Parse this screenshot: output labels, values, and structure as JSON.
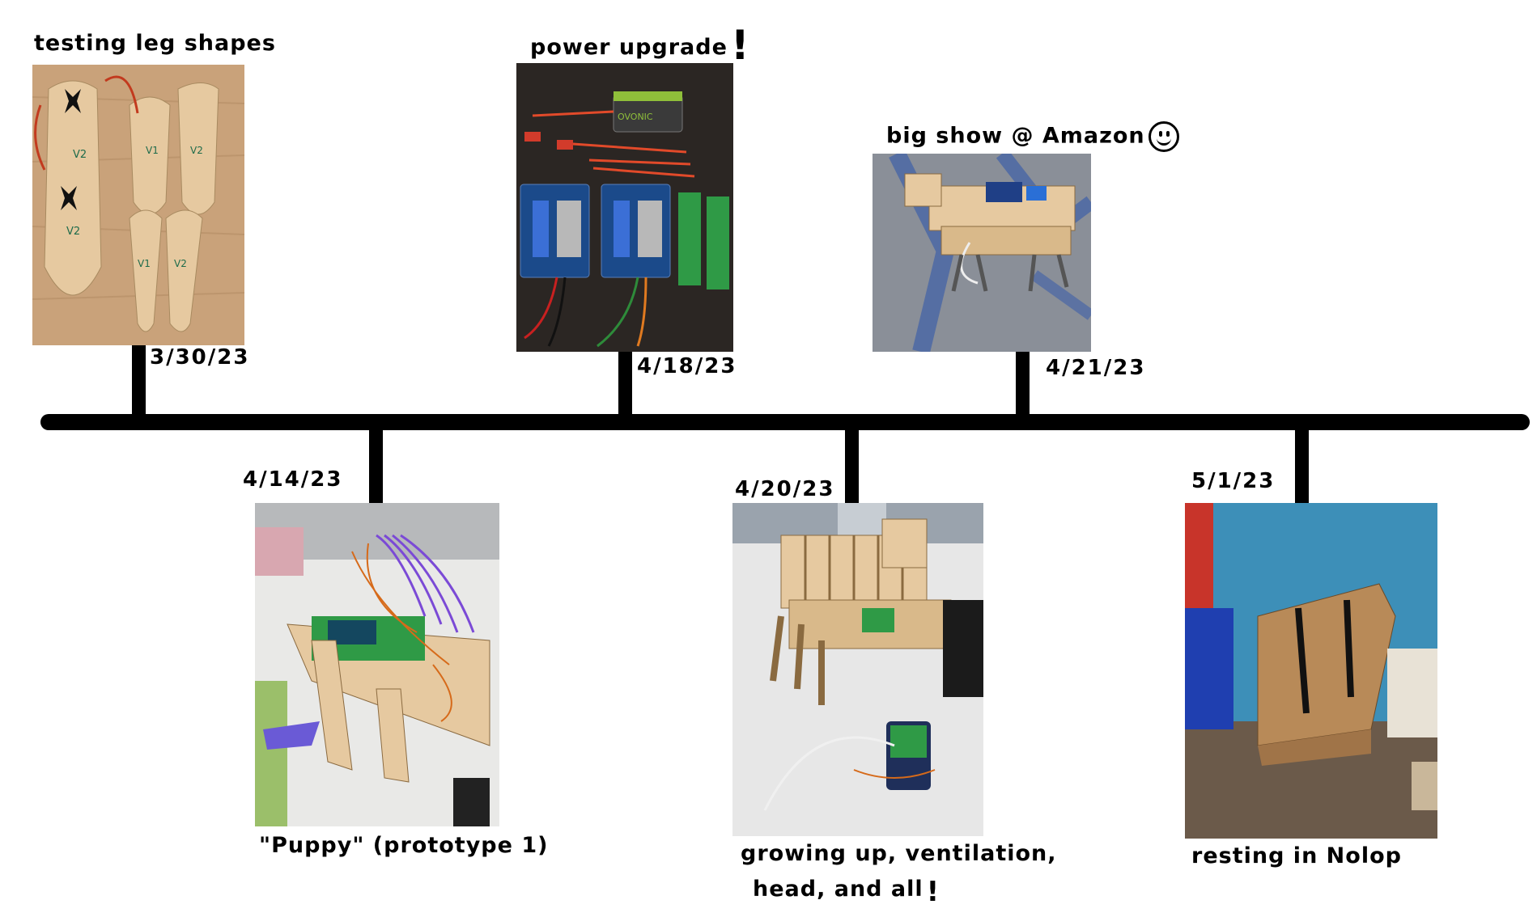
{
  "events": [
    {
      "date": "3/30/23",
      "caption": "testing leg shapes",
      "photo": "laser-cut wooden leg pieces labeled V1 and V2 with servos on a wood table"
    },
    {
      "date": "4/14/23",
      "caption": "\"Puppy\" (prototype 1)",
      "photo": "wooden frame with green board, servos and purple ribbon cables on a white table"
    },
    {
      "date": "4/18/23",
      "caption": "power upgrade",
      "photo": "battery, red connector cables, blue voltage converters and green terminal blocks on a dark table"
    },
    {
      "date": "4/20/23",
      "caption_line1": "growing up, ventilation,",
      "caption_line2": "head, and all",
      "photo": "larger wooden robot dog with head and raspberry pi on a white table"
    },
    {
      "date": "4/21/23",
      "caption": "big show @ Amazon",
      "photo": "robot dog on grey and blue carpet"
    },
    {
      "date": "5/1/23",
      "caption": "resting in Nolop",
      "photo": "cardboard box next to red and blue bins against a blue wall"
    }
  ],
  "leg_labels": [
    "V2",
    "V1",
    "V2",
    "V2",
    "V1",
    "V2"
  ],
  "battery_text": "OVONIC",
  "colors": {
    "line": "#000000",
    "wood": "#e6c9a0",
    "table": "#c9a27a",
    "dark_table": "#2b2623",
    "carpet": "#8a8f98",
    "wall_blue": "#3d8fb8",
    "cardboard": "#b88a58"
  }
}
